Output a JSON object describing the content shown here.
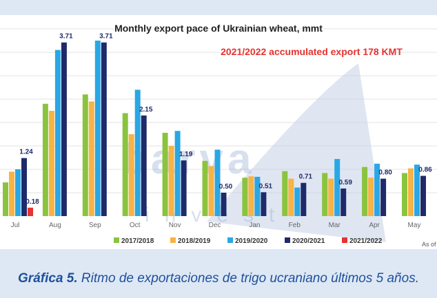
{
  "chart_data": {
    "type": "bar",
    "title": "Monthly export pace of Ukrainian wheat, mmt",
    "annotation": "2021/2022 accumulated export 178 KMT",
    "categories": [
      "Jul",
      "Aug",
      "Sep",
      "Oct",
      "Nov",
      "Dec",
      "Jan",
      "Feb",
      "Mar",
      "Apr",
      "May"
    ],
    "ylim": [
      0,
      4.0
    ],
    "grid": true,
    "legend_position": "bottom",
    "series": [
      {
        "name": "2017/2018",
        "color": "#8ac43f",
        "values": [
          0.72,
          2.4,
          2.6,
          2.2,
          1.78,
          1.18,
          0.82,
          0.96,
          0.92,
          1.05,
          0.92
        ]
      },
      {
        "name": "2018/2019",
        "color": "#f7b344",
        "values": [
          0.95,
          2.25,
          2.45,
          1.75,
          1.5,
          1.07,
          0.85,
          0.8,
          0.8,
          0.82,
          1.02
        ]
      },
      {
        "name": "2019/2020",
        "color": "#2aa7e4",
        "values": [
          1.0,
          3.55,
          3.75,
          2.7,
          1.82,
          1.42,
          0.84,
          0.61,
          1.22,
          1.12,
          1.1
        ]
      },
      {
        "name": "2020/2021",
        "color": "#1f2a6a",
        "values": [
          1.24,
          3.71,
          3.71,
          2.15,
          1.19,
          0.5,
          0.51,
          0.71,
          0.59,
          0.8,
          0.86
        ]
      },
      {
        "name": "2021/2022",
        "color": "#e8322f",
        "values": [
          0.18,
          null,
          null,
          null,
          null,
          null,
          null,
          null,
          null,
          null,
          null
        ]
      }
    ],
    "data_labels": [
      {
        "series": 3,
        "index": 0,
        "text": "1.24"
      },
      {
        "series": 3,
        "index": 1,
        "text": "3.71"
      },
      {
        "series": 3,
        "index": 2,
        "text": "3.71"
      },
      {
        "series": 3,
        "index": 3,
        "text": "2.15"
      },
      {
        "series": 3,
        "index": 4,
        "text": "1.19"
      },
      {
        "series": 3,
        "index": 5,
        "text": "0.50"
      },
      {
        "series": 3,
        "index": 6,
        "text": "0.51"
      },
      {
        "series": 3,
        "index": 7,
        "text": "0.71"
      },
      {
        "series": 3,
        "index": 8,
        "text": "0.59"
      },
      {
        "series": 3,
        "index": 9,
        "text": "0.80"
      },
      {
        "series": 3,
        "index": 10,
        "text": "0.86"
      },
      {
        "series": 4,
        "index": 0,
        "text": "0.18"
      }
    ],
    "corner_note": "As of"
  },
  "watermark": {
    "brand": "barva",
    "sub": "invest"
  },
  "caption": {
    "label": "Gráfica 5.",
    "text": " Ritmo de exportaciones de trigo ucraniano últimos 5 años."
  }
}
